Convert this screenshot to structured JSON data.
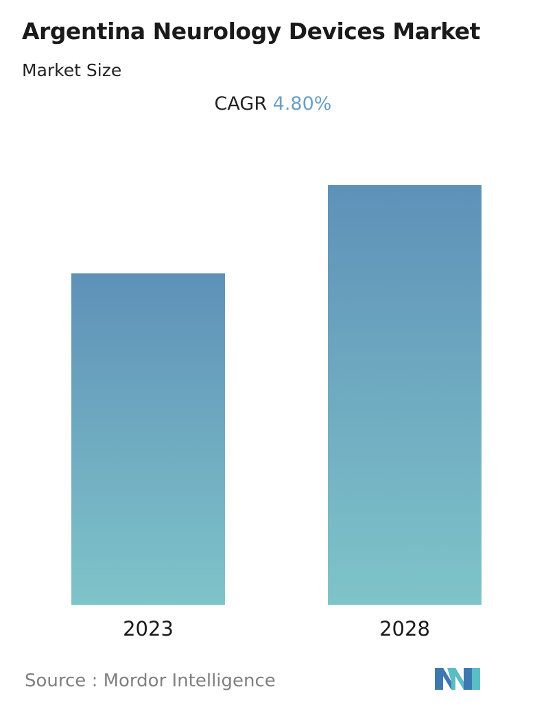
{
  "header": {
    "title": "Argentina Neurology Devices Market",
    "subtitle": "Market Size",
    "cagr_label": "CAGR",
    "cagr_value": "4.80%"
  },
  "chart_data": {
    "type": "bar",
    "title": "Argentina Neurology Devices Market",
    "subtitle": "Market Size",
    "categories": [
      "2023",
      "2028"
    ],
    "values": [
      0.79,
      1.0
    ],
    "value_note": "relative bar heights; no values printed",
    "xlabel": "",
    "ylabel": "",
    "ylim": [
      0,
      1.0
    ],
    "grid": false,
    "annotations": [
      "CAGR 4.80%"
    ],
    "colors": {
      "bar_top": "#5e91b8",
      "bar_bottom": "#7fc4c9"
    }
  },
  "footer": {
    "source_text": "Source :  Mordor Intelligence",
    "logo_name": "mordor-intelligence-logo",
    "logo_colors": [
      "#3d78b0",
      "#5bbdc4"
    ]
  }
}
